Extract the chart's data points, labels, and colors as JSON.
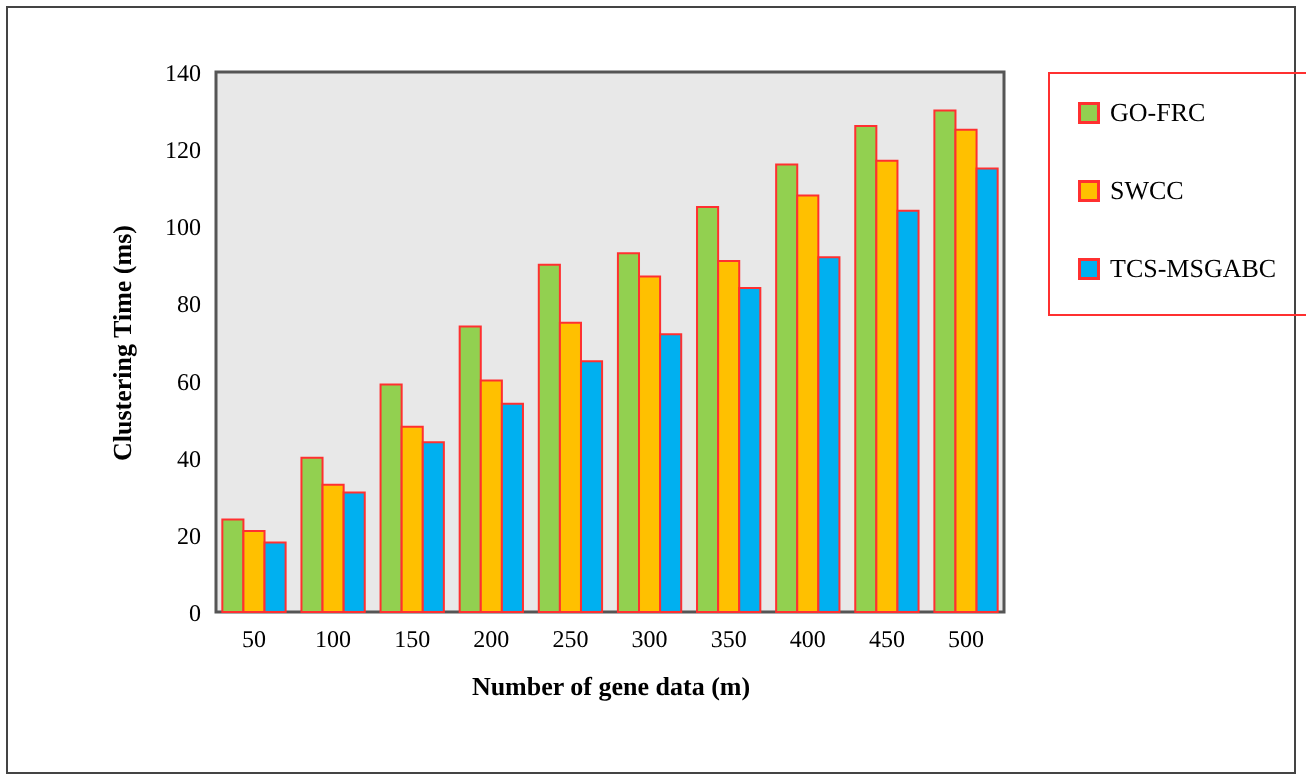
{
  "chart_data": {
    "type": "bar",
    "xlabel": "Number of gene data  (m)",
    "ylabel": "Clustering  Time (ms)",
    "categories": [
      "50",
      "100",
      "150",
      "200",
      "250",
      "300",
      "350",
      "400",
      "450",
      "500"
    ],
    "series": [
      {
        "name": "GO-FRC",
        "color": "#92d050",
        "values": [
          24,
          40,
          59,
          74,
          90,
          93,
          105,
          116,
          126,
          130
        ]
      },
      {
        "name": "SWCC",
        "color": "#ffc000",
        "values": [
          21,
          33,
          48,
          60,
          75,
          87,
          91,
          108,
          117,
          125
        ]
      },
      {
        "name": "TCS-MSGABC",
        "color": "#00b0f0",
        "values": [
          18,
          31,
          44,
          54,
          65,
          72,
          84,
          92,
          104,
          115
        ]
      }
    ],
    "ylim": [
      0,
      140
    ],
    "yticks": [
      0,
      20,
      40,
      60,
      80,
      100,
      120,
      140
    ],
    "grid": false,
    "legend": "right"
  }
}
